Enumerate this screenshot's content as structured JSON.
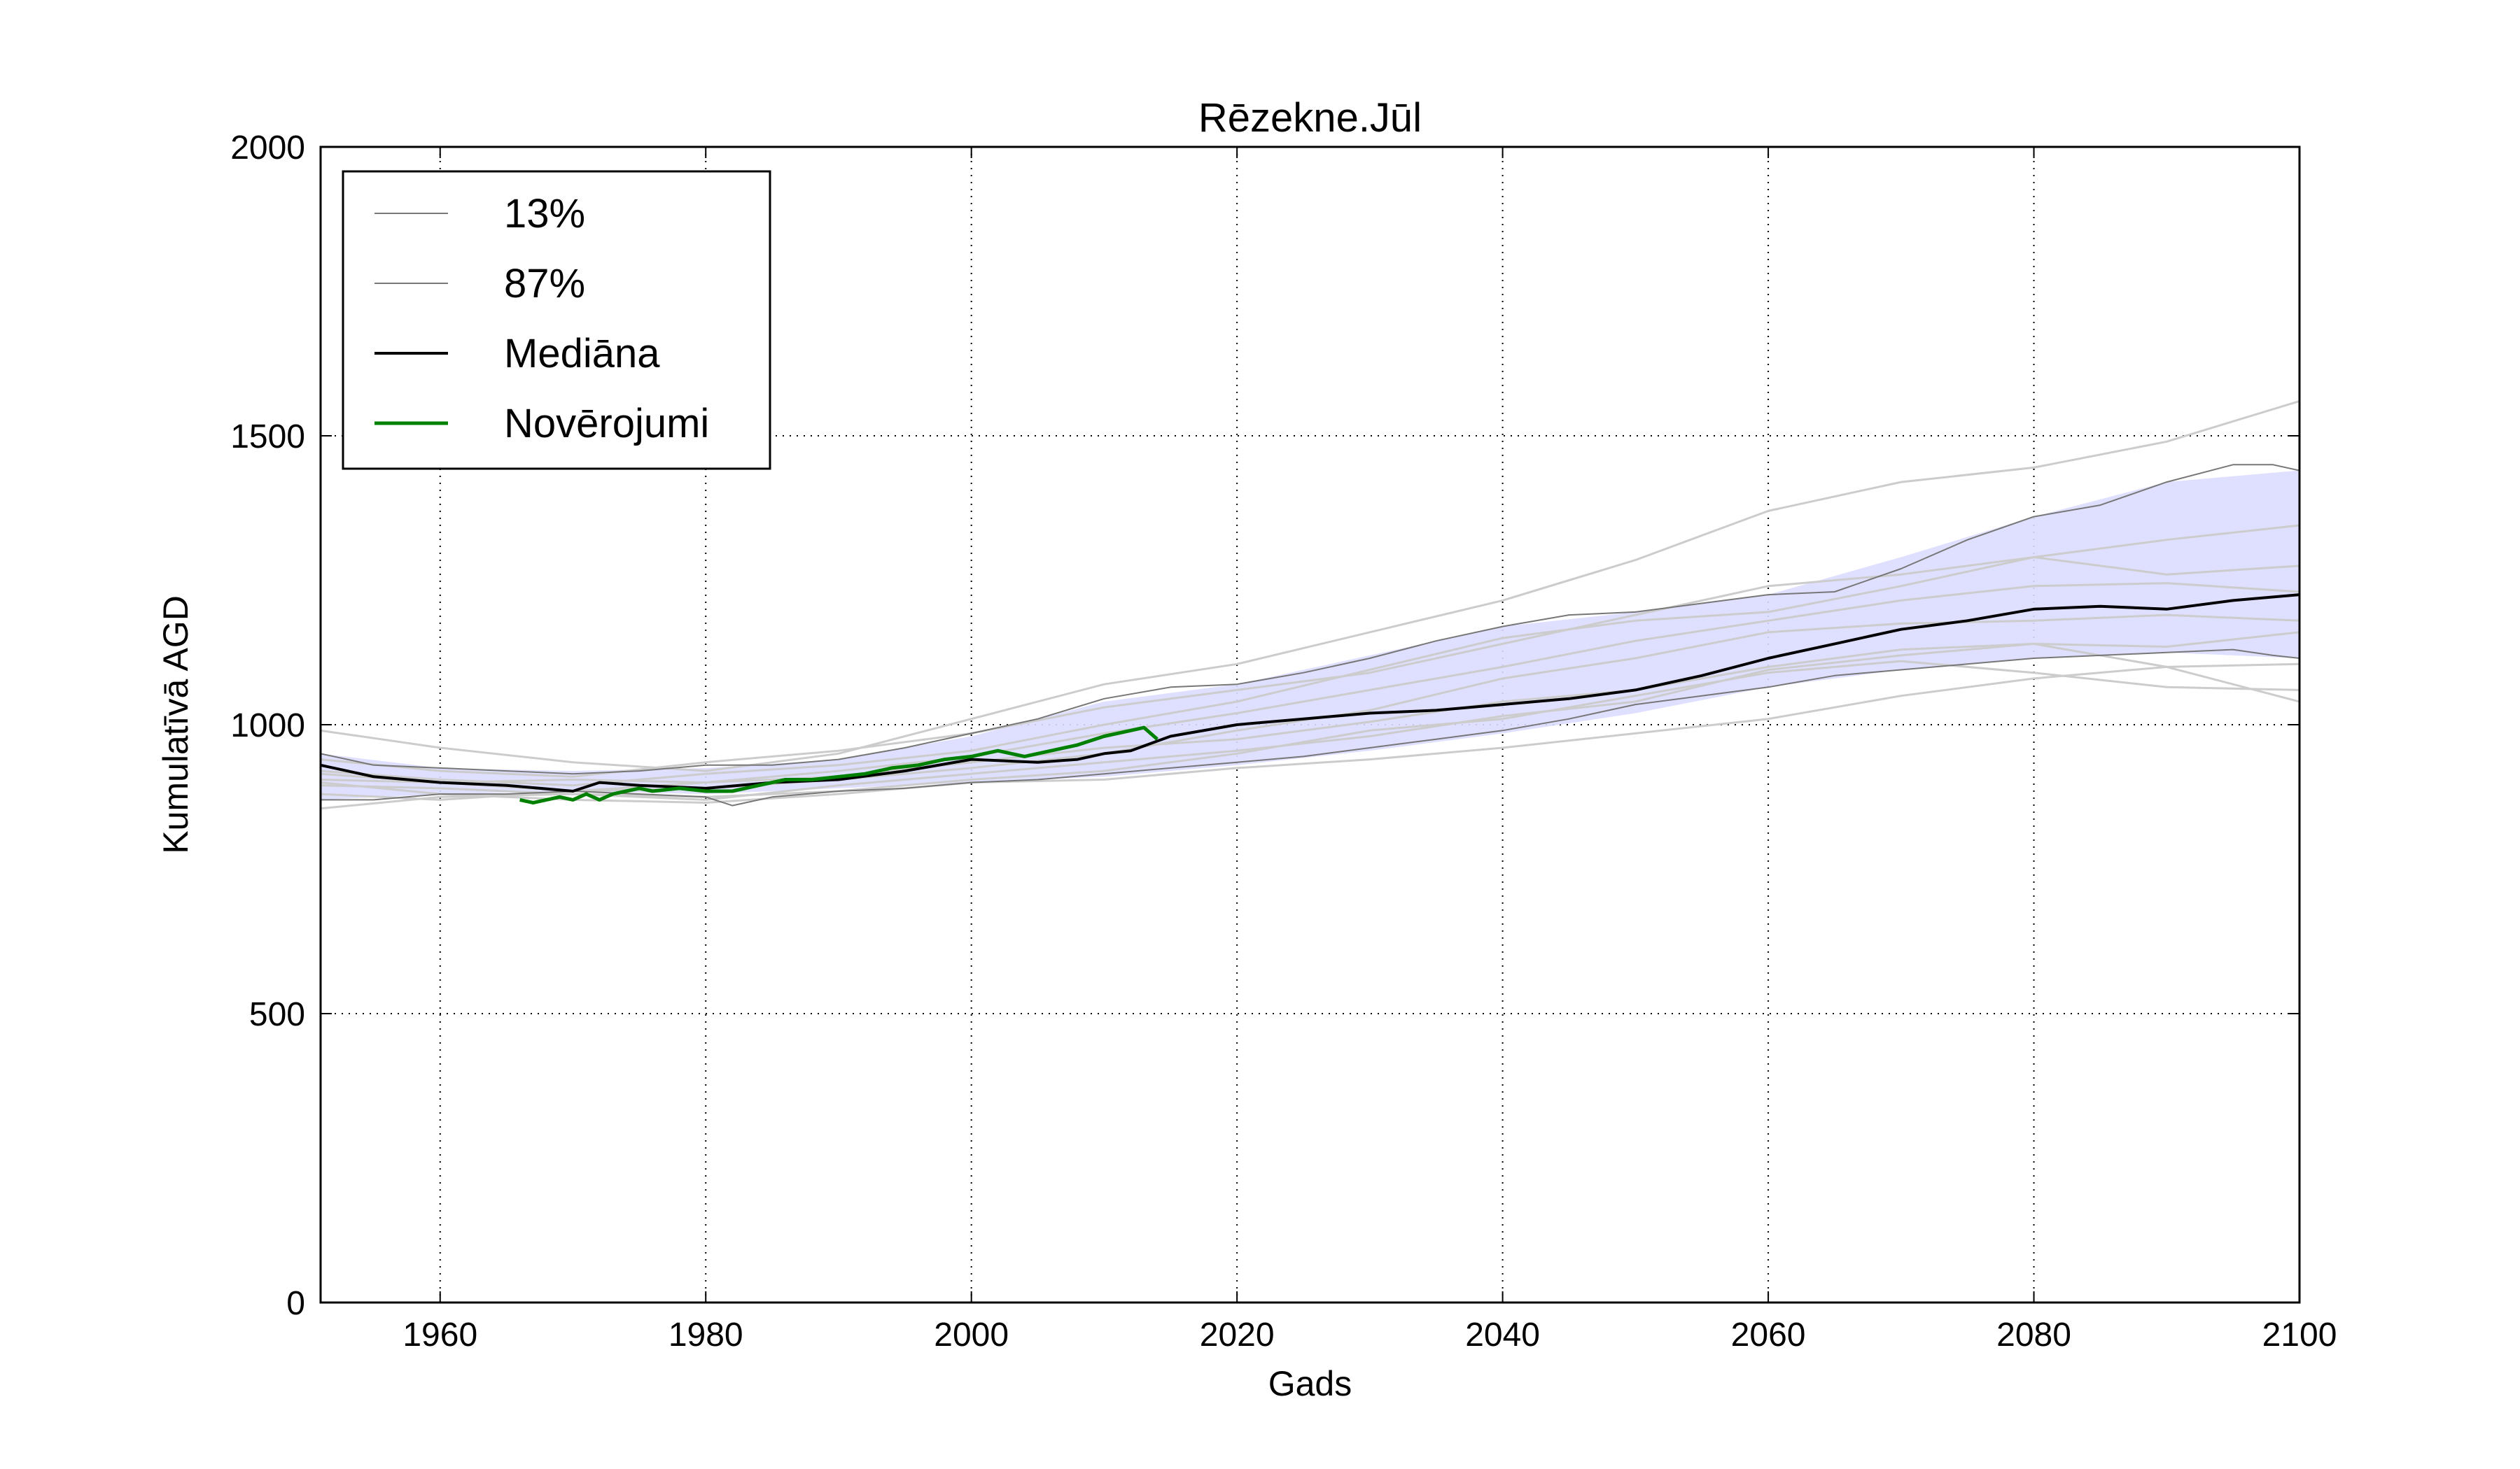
{
  "chart_data": {
    "type": "line",
    "title": "Rēzekne.Jūl",
    "xlabel": "Gads",
    "ylabel": "Kumulatīvā AGD",
    "xlim": [
      1951,
      2100
    ],
    "ylim": [
      0,
      2000
    ],
    "xticks": [
      1960,
      1980,
      2000,
      2020,
      2040,
      2060,
      2080,
      2100
    ],
    "yticks": [
      0,
      500,
      1000,
      1500,
      2000
    ],
    "grid": true,
    "legend_position": "upper-left",
    "band": {
      "color": "#dcdcff",
      "x": [
        1951,
        1960,
        1970,
        1980,
        1990,
        2000,
        2010,
        2020,
        2030,
        2040,
        2050,
        2060,
        2070,
        2080,
        2090,
        2100
      ],
      "lower": [
        870,
        880,
        885,
        880,
        890,
        900,
        910,
        930,
        955,
        985,
        1020,
        1065,
        1095,
        1115,
        1125,
        1115
      ],
      "upper": [
        950,
        925,
        920,
        925,
        940,
        980,
        1040,
        1070,
        1120,
        1170,
        1195,
        1225,
        1290,
        1360,
        1420,
        1440
      ]
    },
    "series": [
      {
        "name": "13%",
        "role": "lower",
        "color": "#777777",
        "width": 2,
        "x": [
          1951,
          1955,
          1960,
          1965,
          1970,
          1975,
          1980,
          1982,
          1985,
          1990,
          1995,
          2000,
          2005,
          2010,
          2015,
          2020,
          2025,
          2030,
          2035,
          2040,
          2045,
          2050,
          2055,
          2060,
          2065,
          2070,
          2075,
          2080,
          2085,
          2090,
          2095,
          2098,
          2100
        ],
        "y": [
          870,
          870,
          880,
          880,
          885,
          880,
          875,
          860,
          875,
          885,
          890,
          900,
          905,
          915,
          925,
          935,
          945,
          960,
          975,
          990,
          1010,
          1035,
          1050,
          1065,
          1085,
          1095,
          1105,
          1115,
          1120,
          1125,
          1130,
          1120,
          1115
        ]
      },
      {
        "name": "87%",
        "role": "upper",
        "color": "#777777",
        "width": 2,
        "x": [
          1951,
          1955,
          1960,
          1965,
          1970,
          1975,
          1980,
          1985,
          1990,
          1995,
          2000,
          2005,
          2010,
          2015,
          2020,
          2025,
          2030,
          2035,
          2040,
          2045,
          2050,
          2055,
          2060,
          2065,
          2070,
          2075,
          2080,
          2085,
          2090,
          2095,
          2098,
          2100
        ],
        "y": [
          950,
          930,
          925,
          920,
          915,
          920,
          930,
          930,
          940,
          960,
          985,
          1010,
          1045,
          1065,
          1070,
          1090,
          1115,
          1145,
          1170,
          1190,
          1195,
          1210,
          1225,
          1230,
          1270,
          1320,
          1360,
          1380,
          1420,
          1450,
          1450,
          1440
        ]
      },
      {
        "name": "Mediāna",
        "role": "median",
        "color": "#000000",
        "width": 4,
        "x": [
          1951,
          1955,
          1960,
          1965,
          1970,
          1972,
          1975,
          1980,
          1985,
          1990,
          1995,
          2000,
          2005,
          2008,
          2010,
          2012,
          2015,
          2020,
          2025,
          2030,
          2035,
          2040,
          2045,
          2050,
          2055,
          2060,
          2065,
          2070,
          2075,
          2080,
          2085,
          2090,
          2095,
          2100
        ],
        "y": [
          930,
          910,
          900,
          895,
          885,
          900,
          895,
          890,
          900,
          905,
          920,
          940,
          935,
          940,
          950,
          955,
          980,
          1000,
          1010,
          1020,
          1025,
          1035,
          1045,
          1060,
          1085,
          1115,
          1140,
          1165,
          1180,
          1200,
          1205,
          1200,
          1215,
          1225
        ]
      },
      {
        "name": "Novērojumi",
        "role": "observed",
        "color": "#008000",
        "width": 5,
        "x": [
          1966,
          1967,
          1968,
          1969,
          1970,
          1971,
          1972,
          1973,
          1974,
          1975,
          1976,
          1978,
          1980,
          1982,
          1984,
          1986,
          1988,
          1990,
          1992,
          1994,
          1996,
          1998,
          2000,
          2002,
          2004,
          2006,
          2008,
          2010,
          2012,
          2013,
          2014
        ],
        "y": [
          870,
          865,
          870,
          875,
          870,
          880,
          870,
          880,
          885,
          890,
          885,
          890,
          885,
          885,
          895,
          905,
          905,
          910,
          915,
          925,
          930,
          940,
          945,
          955,
          945,
          955,
          965,
          980,
          990,
          995,
          975
        ]
      }
    ],
    "ensemble_lines": [
      {
        "x": [
          1951,
          1960,
          1970,
          1980,
          1990,
          2000,
          2010,
          2020,
          2030,
          2040,
          2050,
          2060,
          2070,
          2080,
          2090,
          2100
        ],
        "y": [
          990,
          960,
          935,
          920,
          950,
          1010,
          1070,
          1105,
          1160,
          1215,
          1285,
          1370,
          1420,
          1445,
          1490,
          1560
        ]
      },
      {
        "x": [
          1951,
          1960,
          1970,
          1980,
          1990,
          2000,
          2010,
          2020,
          2030,
          2040,
          2050,
          2060,
          2070,
          2080,
          2090,
          2100
        ],
        "y": [
          855,
          875,
          880,
          870,
          895,
          915,
          935,
          955,
          980,
          1015,
          1040,
          1095,
          1120,
          1140,
          1135,
          1160
        ]
      },
      {
        "x": [
          1951,
          1960,
          1970,
          1980,
          1990,
          2000,
          2010,
          2020,
          2030,
          2040,
          2050,
          2060,
          2070,
          2080,
          2090,
          2100
        ],
        "y": [
          920,
          905,
          895,
          915,
          930,
          955,
          1000,
          1040,
          1095,
          1150,
          1180,
          1195,
          1240,
          1290,
          1320,
          1345
        ]
      },
      {
        "x": [
          1951,
          1960,
          1970,
          1980,
          1990,
          2000,
          2010,
          2020,
          2030,
          2040,
          2050,
          2060,
          2070,
          2080,
          2090,
          2100
        ],
        "y": [
          895,
          890,
          880,
          875,
          885,
          905,
          920,
          950,
          990,
          1010,
          1050,
          1090,
          1110,
          1090,
          1065,
          1060
        ]
      },
      {
        "x": [
          1951,
          1960,
          1970,
          1980,
          1990,
          2000,
          2010,
          2020,
          2030,
          2040,
          2050,
          2060,
          2070,
          2080,
          2090,
          2100
        ],
        "y": [
          905,
          900,
          905,
          900,
          910,
          935,
          960,
          975,
          1005,
          1040,
          1060,
          1100,
          1130,
          1140,
          1100,
          1040
        ]
      },
      {
        "x": [
          1951,
          1960,
          1970,
          1980,
          1990,
          2000,
          2010,
          2020,
          2030,
          2040,
          2050,
          2060,
          2070,
          2080,
          2090,
          2100
        ],
        "y": [
          940,
          920,
          910,
          935,
          955,
          985,
          1030,
          1060,
          1090,
          1140,
          1190,
          1240,
          1260,
          1290,
          1260,
          1275
        ]
      },
      {
        "x": [
          1951,
          1960,
          1970,
          1980,
          1990,
          2000,
          2010,
          2020,
          2030,
          2040,
          2050,
          2060,
          2070,
          2080,
          2090,
          2100
        ],
        "y": [
          880,
          870,
          885,
          890,
          905,
          925,
          950,
          990,
          1025,
          1080,
          1115,
          1160,
          1175,
          1180,
          1190,
          1180
        ]
      },
      {
        "x": [
          1951,
          1960,
          1970,
          1980,
          1990,
          2000,
          2010,
          2020,
          2030,
          2040,
          2050,
          2060,
          2070,
          2080,
          2090,
          2100
        ],
        "y": [
          915,
          900,
          885,
          900,
          920,
          945,
          985,
          1020,
          1060,
          1100,
          1145,
          1180,
          1215,
          1240,
          1245,
          1230
        ]
      },
      {
        "x": [
          1951,
          1960,
          1970,
          1980,
          1990,
          2000,
          2010,
          2020,
          2030,
          2040,
          2050,
          2060,
          2070,
          2080,
          2090,
          2100
        ],
        "y": [
          900,
          880,
          870,
          865,
          880,
          900,
          905,
          925,
          940,
          960,
          985,
          1010,
          1050,
          1080,
          1100,
          1105
        ]
      }
    ]
  }
}
